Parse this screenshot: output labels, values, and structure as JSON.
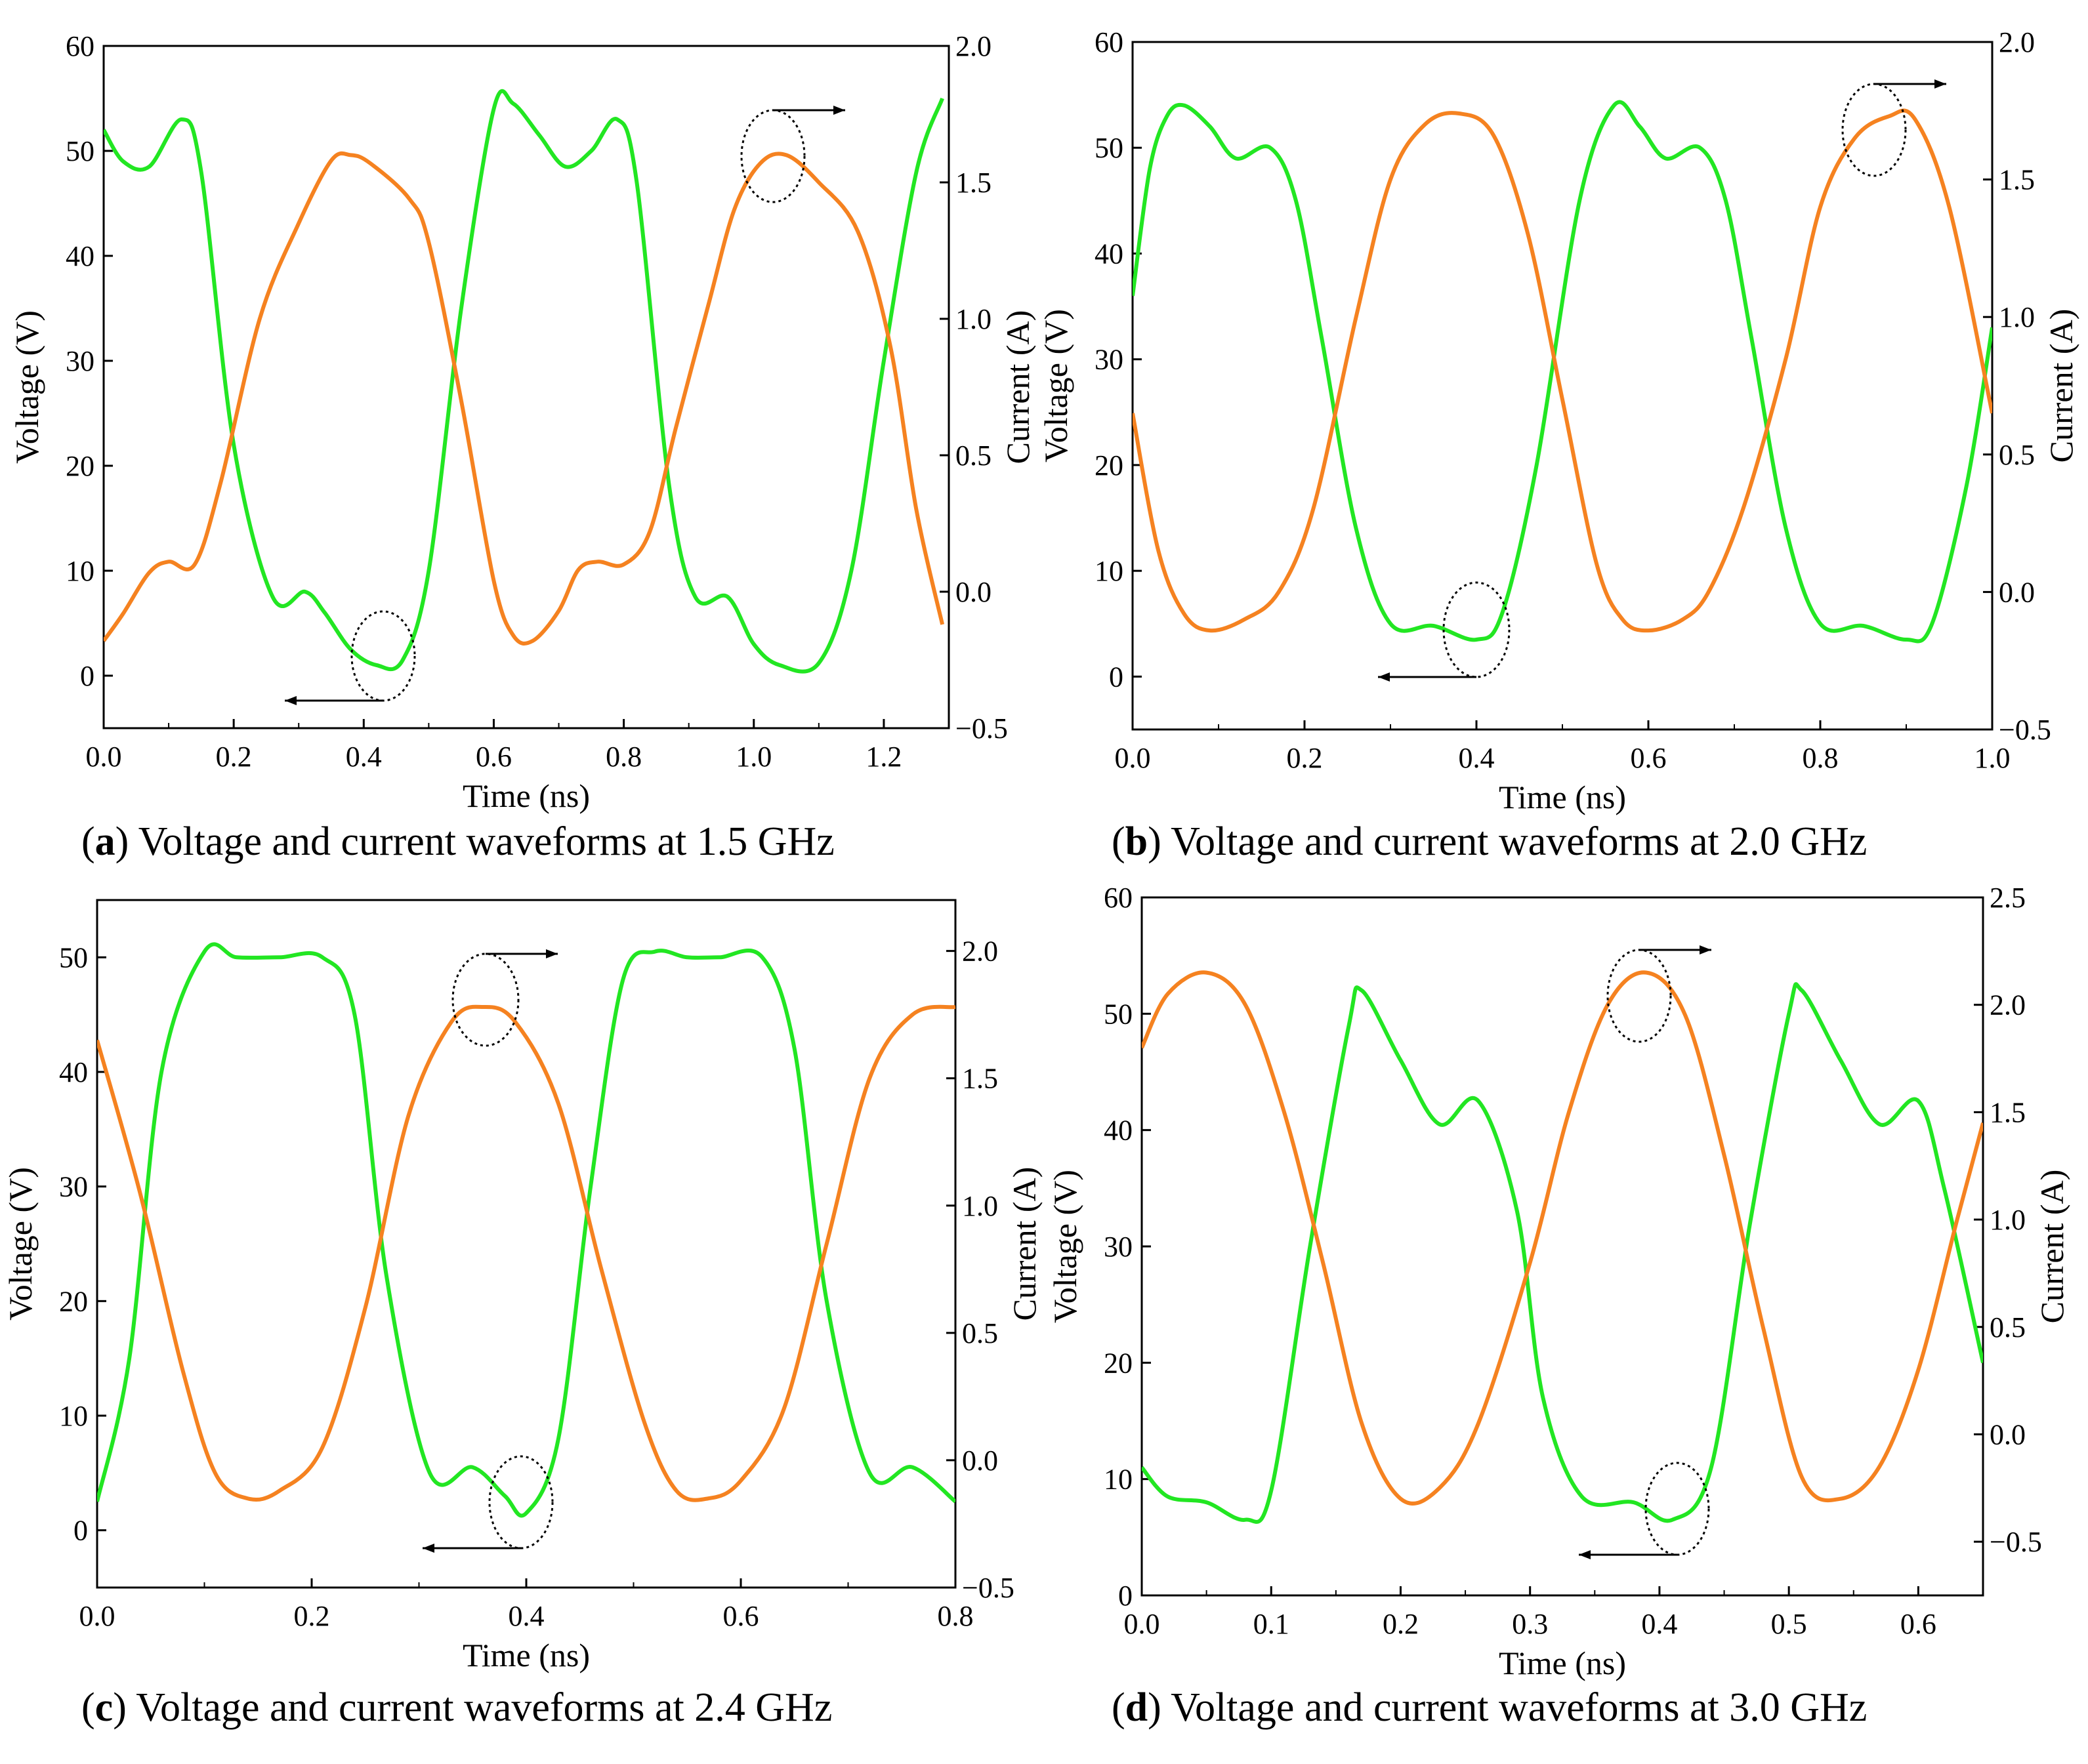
{
  "chart_data": [
    {
      "type": "line",
      "panel": "a",
      "caption_letter": "a",
      "caption_text": "Voltage and current waveforms at 1.5 GHz",
      "xlabel": "Time (ns)",
      "ylabel": "Voltage (V)",
      "y2label": "Current (A)",
      "xlim": [
        0,
        1.3
      ],
      "ylim": [
        -5,
        60
      ],
      "y2lim": [
        -0.5,
        2.0
      ],
      "xticks": [
        0.0,
        0.2,
        0.4,
        0.6,
        0.8,
        1.0,
        1.2
      ],
      "xtick_labels": [
        "0.0",
        "0.2",
        "0.4",
        "0.6",
        "0.8",
        "1.0",
        "1.2"
      ],
      "yticks": [
        0,
        10,
        20,
        30,
        40,
        50,
        60
      ],
      "ytick_labels": [
        "0",
        "10",
        "20",
        "30",
        "40",
        "50",
        "60"
      ],
      "y2ticks": [
        -0.5,
        0.0,
        0.5,
        1.0,
        1.5,
        2.0
      ],
      "y2tick_labels": [
        "−0.5",
        "0.0",
        "0.5",
        "1.0",
        "1.5",
        "2.0"
      ],
      "grid": false,
      "series": [
        {
          "axis": "left",
          "color": "#22e622",
          "x": [
            0.0,
            0.03,
            0.07,
            0.12,
            0.15,
            0.2,
            0.26,
            0.31,
            0.34,
            0.38,
            0.42,
            0.46,
            0.5,
            0.55,
            0.6,
            0.63,
            0.67,
            0.71,
            0.75,
            0.79,
            0.82,
            0.87,
            0.91,
            0.96,
            1.0,
            1.04,
            1.1,
            1.15,
            1.2,
            1.25,
            1.29
          ],
          "y": [
            52,
            49,
            48.5,
            53,
            48,
            22,
            7.5,
            8,
            6,
            2.5,
            1,
            1.5,
            10,
            35,
            54,
            54.5,
            51.5,
            48.5,
            50,
            53,
            47,
            18,
            7.5,
            7.5,
            3,
            1,
            1.2,
            10,
            30,
            48,
            55
          ]
        },
        {
          "axis": "right",
          "color": "#f58220",
          "x": [
            0.0,
            0.03,
            0.07,
            0.1,
            0.14,
            0.18,
            0.24,
            0.3,
            0.35,
            0.38,
            0.41,
            0.47,
            0.5,
            0.55,
            0.6,
            0.63,
            0.66,
            0.7,
            0.73,
            0.76,
            0.8,
            0.84,
            0.88,
            0.93,
            0.97,
            1.01,
            1.05,
            1.1,
            1.16,
            1.21,
            1.25,
            1.29
          ],
          "y": [
            -0.18,
            -0.08,
            0.07,
            0.11,
            0.1,
            0.4,
            1.0,
            1.35,
            1.58,
            1.6,
            1.57,
            1.44,
            1.28,
            0.7,
            0.04,
            -0.16,
            -0.18,
            -0.07,
            0.08,
            0.11,
            0.1,
            0.22,
            0.6,
            1.05,
            1.4,
            1.57,
            1.6,
            1.5,
            1.32,
            0.9,
            0.3,
            -0.12
          ]
        }
      ]
    },
    {
      "type": "line",
      "panel": "b",
      "caption_letter": "b",
      "caption_text": "Voltage and current waveforms at 2.0 GHz",
      "xlabel": "Time (ns)",
      "ylabel": "Voltage (V)",
      "y2label": "Current (A)",
      "xlim": [
        0,
        1.0
      ],
      "ylim": [
        -5,
        60
      ],
      "y2lim": [
        -0.5,
        2.0
      ],
      "xticks": [
        0.0,
        0.2,
        0.4,
        0.6,
        0.8,
        1.0
      ],
      "xtick_labels": [
        "0.0",
        "0.2",
        "0.4",
        "0.6",
        "0.8",
        "1.0"
      ],
      "yticks": [
        0,
        10,
        20,
        30,
        40,
        50,
        60
      ],
      "ytick_labels": [
        "0",
        "10",
        "20",
        "30",
        "40",
        "50",
        "60"
      ],
      "y2ticks": [
        -0.5,
        0.0,
        0.5,
        1.0,
        1.5,
        2.0
      ],
      "y2tick_labels": [
        "−0.5",
        "0.0",
        "0.5",
        "1.0",
        "1.5",
        "2.0"
      ],
      "grid": false,
      "series": [
        {
          "axis": "left",
          "color": "#22e622",
          "x": [
            0.0,
            0.02,
            0.04,
            0.06,
            0.09,
            0.12,
            0.16,
            0.19,
            0.22,
            0.26,
            0.3,
            0.35,
            0.4,
            0.43,
            0.47,
            0.52,
            0.56,
            0.59,
            0.62,
            0.66,
            0.69,
            0.72,
            0.76,
            0.8,
            0.85,
            0.9,
            0.93,
            0.97,
            1.0
          ],
          "y": [
            36,
            48,
            53,
            54,
            52,
            49,
            50,
            45,
            32,
            14,
            5,
            4.8,
            3.5,
            6,
            20,
            45,
            54,
            52,
            49,
            50,
            45,
            32,
            14,
            5,
            4.8,
            3.5,
            5,
            18,
            33
          ]
        },
        {
          "axis": "right",
          "color": "#f58220",
          "x": [
            0.0,
            0.03,
            0.06,
            0.09,
            0.13,
            0.17,
            0.21,
            0.26,
            0.3,
            0.34,
            0.38,
            0.42,
            0.46,
            0.5,
            0.54,
            0.57,
            0.6,
            0.64,
            0.67,
            0.71,
            0.76,
            0.8,
            0.84,
            0.88,
            0.91,
            0.95,
            1.0
          ],
          "y": [
            0.65,
            0.15,
            -0.08,
            -0.14,
            -0.1,
            0.0,
            0.3,
            1.0,
            1.5,
            1.7,
            1.74,
            1.66,
            1.3,
            0.7,
            0.1,
            -0.1,
            -0.14,
            -0.1,
            -0.0,
            0.3,
            0.85,
            1.4,
            1.65,
            1.73,
            1.72,
            1.4,
            0.65
          ]
        }
      ]
    },
    {
      "type": "line",
      "panel": "c",
      "caption_letter": "c",
      "caption_text": "Voltage and current waveforms at 2.4 GHz",
      "xlabel": "Time (ns)",
      "ylabel": "Voltage (V)",
      "y2label": "Current (A)",
      "xlim": [
        0,
        0.8
      ],
      "ylim": [
        -5,
        55
      ],
      "y2lim": [
        -0.5,
        2.2
      ],
      "xticks": [
        0.0,
        0.2,
        0.4,
        0.6,
        0.8
      ],
      "xtick_labels": [
        "0.0",
        "0.2",
        "0.4",
        "0.6",
        "0.8"
      ],
      "yticks": [
        0,
        10,
        20,
        30,
        40,
        50
      ],
      "ytick_labels": [
        "0",
        "10",
        "20",
        "30",
        "40",
        "50"
      ],
      "y2ticks": [
        -0.5,
        0.0,
        0.5,
        1.0,
        1.5,
        2.0
      ],
      "y2tick_labels": [
        "−0.5",
        "0.0",
        "0.5",
        "1.0",
        "1.5",
        "2.0"
      ],
      "grid": false,
      "series": [
        {
          "axis": "left",
          "color": "#22e622",
          "x": [
            0.0,
            0.03,
            0.06,
            0.1,
            0.13,
            0.17,
            0.21,
            0.24,
            0.27,
            0.31,
            0.35,
            0.38,
            0.4,
            0.43,
            0.46,
            0.49,
            0.52,
            0.55,
            0.58,
            0.62,
            0.65,
            0.68,
            0.72,
            0.76,
            0.8
          ],
          "y": [
            2.5,
            15,
            40,
            50.5,
            50,
            50,
            50,
            45,
            22,
            5,
            5.5,
            3,
            1.5,
            8,
            30,
            48,
            50.5,
            50,
            50,
            50,
            42,
            20,
            5,
            5.5,
            2.5
          ]
        },
        {
          "axis": "right",
          "color": "#f58220",
          "x": [
            0.0,
            0.04,
            0.08,
            0.11,
            0.14,
            0.17,
            0.21,
            0.25,
            0.29,
            0.33,
            0.36,
            0.39,
            0.43,
            0.47,
            0.51,
            0.54,
            0.57,
            0.6,
            0.64,
            0.68,
            0.72,
            0.76,
            0.8
          ],
          "y": [
            1.65,
            1.05,
            0.35,
            -0.05,
            -0.15,
            -0.12,
            0.05,
            0.6,
            1.35,
            1.72,
            1.78,
            1.72,
            1.4,
            0.75,
            0.15,
            -0.12,
            -0.15,
            -0.08,
            0.2,
            0.85,
            1.5,
            1.75,
            1.78
          ]
        }
      ]
    },
    {
      "type": "line",
      "panel": "d",
      "caption_letter": "d",
      "caption_text": "Voltage and current waveforms at 3.0 GHz",
      "xlabel": "Time (ns)",
      "ylabel": "Voltage (V)",
      "y2label": "Current (A)",
      "xlim": [
        0,
        0.65
      ],
      "ylim": [
        0,
        60
      ],
      "y2lim": [
        -0.75,
        2.5
      ],
      "xticks": [
        0.0,
        0.1,
        0.2,
        0.3,
        0.4,
        0.5,
        0.6
      ],
      "xtick_labels": [
        "0.0",
        "0.1",
        "0.2",
        "0.3",
        "0.4",
        "0.5",
        "0.6"
      ],
      "yticks": [
        0,
        10,
        20,
        30,
        40,
        50,
        60
      ],
      "ytick_labels": [
        "0",
        "10",
        "20",
        "30",
        "40",
        "50",
        "60"
      ],
      "y2ticks": [
        -0.5,
        0.0,
        0.5,
        1.0,
        1.5,
        2.0,
        2.5
      ],
      "y2tick_labels": [
        "−0.5",
        "0.0",
        "0.5",
        "1.0",
        "1.5",
        "2.0",
        "2.5"
      ],
      "grid": false,
      "series": [
        {
          "axis": "left",
          "color": "#22e622",
          "x": [
            0.0,
            0.02,
            0.05,
            0.08,
            0.1,
            0.13,
            0.16,
            0.17,
            0.2,
            0.23,
            0.26,
            0.29,
            0.31,
            0.34,
            0.38,
            0.41,
            0.44,
            0.47,
            0.5,
            0.51,
            0.54,
            0.57,
            0.6,
            0.62,
            0.65
          ],
          "y": [
            11,
            8.5,
            8,
            6.5,
            9,
            30,
            49,
            52,
            46,
            40.5,
            42.5,
            33,
            17,
            8.5,
            8,
            6.5,
            11,
            32,
            50,
            52,
            46,
            40.5,
            42.5,
            35,
            20
          ]
        },
        {
          "axis": "right",
          "color": "#f58220",
          "x": [
            0.0,
            0.02,
            0.05,
            0.08,
            0.11,
            0.14,
            0.17,
            0.2,
            0.23,
            0.26,
            0.3,
            0.33,
            0.36,
            0.39,
            0.42,
            0.45,
            0.48,
            0.51,
            0.54,
            0.57,
            0.6,
            0.63,
            0.65
          ],
          "y": [
            1.8,
            2.05,
            2.15,
            2.0,
            1.5,
            0.8,
            0.05,
            -0.3,
            -0.25,
            0.05,
            0.8,
            1.5,
            2.0,
            2.15,
            1.95,
            1.3,
            0.5,
            -0.2,
            -0.3,
            -0.15,
            0.3,
            1.0,
            1.45
          ]
        }
      ]
    }
  ]
}
